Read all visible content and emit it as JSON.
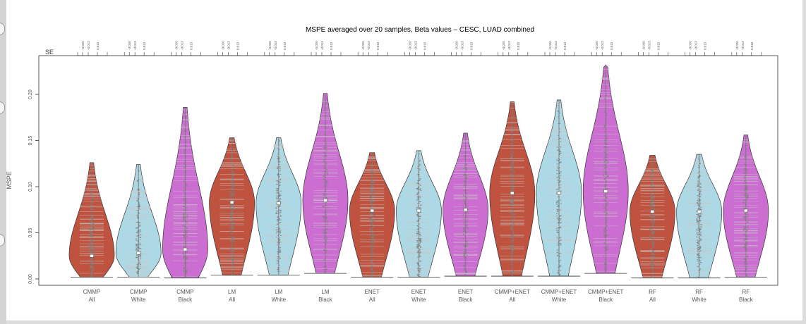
{
  "chart_data": {
    "type": "violin",
    "title": "MSPE averaged over 20 samples, Beta values – CESC, LUAD combined",
    "ylabel": "MSPE",
    "top_axis_label": "SE",
    "ylim": [
      0,
      0.24
    ],
    "yticks": [
      0.0,
      0.05,
      0.1,
      0.15,
      0.2
    ],
    "ytick_labels": [
      "0.00",
      "0.05",
      "0.10",
      "0.15",
      "0.20"
    ],
    "se_tick_labels": [
      "-0.026",
      "-0.013",
      "0.013"
    ],
    "colors": {
      "All": "#c0533f",
      "White": "#add8e6",
      "Black": "#cc6dd2",
      "points": "#808080"
    },
    "groups": [
      {
        "method": "CMMP",
        "race": "All",
        "min": 0.002,
        "max": 0.126,
        "median": 0.025
      },
      {
        "method": "CMMP",
        "race": "White",
        "min": 0.002,
        "max": 0.124,
        "median": 0.028
      },
      {
        "method": "CMMP",
        "race": "Black",
        "min": 0.001,
        "max": 0.186,
        "median": 0.032
      },
      {
        "method": "LM",
        "race": "All",
        "min": 0.004,
        "max": 0.153,
        "median": 0.083
      },
      {
        "method": "LM",
        "race": "White",
        "min": 0.004,
        "max": 0.153,
        "median": 0.082
      },
      {
        "method": "LM",
        "race": "Black",
        "min": 0.006,
        "max": 0.201,
        "median": 0.085
      },
      {
        "method": "ENET",
        "race": "All",
        "min": 0.002,
        "max": 0.137,
        "median": 0.074
      },
      {
        "method": "ENET",
        "race": "White",
        "min": 0.002,
        "max": 0.139,
        "median": 0.074
      },
      {
        "method": "ENET",
        "race": "Black",
        "min": 0.003,
        "max": 0.158,
        "median": 0.075
      },
      {
        "method": "CMMP+ENET",
        "race": "All",
        "min": 0.003,
        "max": 0.192,
        "median": 0.093
      },
      {
        "method": "CMMP+ENET",
        "race": "White",
        "min": 0.003,
        "max": 0.194,
        "median": 0.093
      },
      {
        "method": "CMMP+ENET",
        "race": "Black",
        "min": 0.006,
        "max": 0.232,
        "median": 0.095
      },
      {
        "method": "RF",
        "race": "All",
        "min": 0.001,
        "max": 0.134,
        "median": 0.073
      },
      {
        "method": "RF",
        "race": "White",
        "min": 0.001,
        "max": 0.135,
        "median": 0.073
      },
      {
        "method": "RF",
        "race": "Black",
        "min": 0.002,
        "max": 0.156,
        "median": 0.074
      }
    ]
  }
}
